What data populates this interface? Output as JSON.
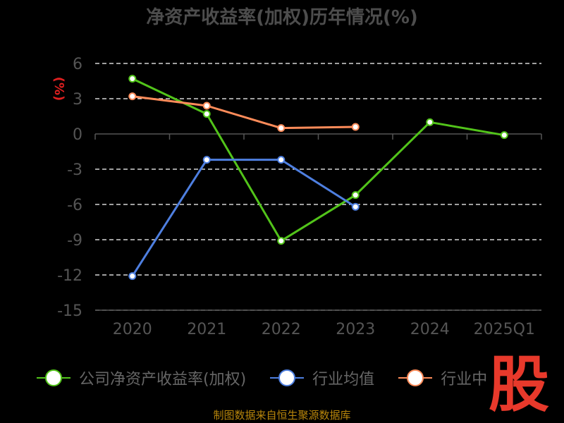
{
  "title": "净资产收益率(加权)历年情况(%)",
  "source": "制图数据来自恒生聚源数据库",
  "logo_text": "股",
  "chart_data": {
    "type": "line",
    "title": "净资产收益率(加权)历年情况(%)",
    "ylabel": "(%)",
    "xlabel": "",
    "categories": [
      "2020",
      "2021",
      "2022",
      "2023",
      "2024",
      "2025Q1"
    ],
    "yticks": [
      6,
      3,
      0,
      -3,
      -6,
      -9,
      -12,
      -15
    ],
    "ylim": [
      -15,
      6
    ],
    "grid": true,
    "legend_position": "bottom",
    "series": [
      {
        "name": "公司净资产收益率(加权)",
        "color": "#52c41a",
        "values": [
          4.7,
          1.7,
          -9.1,
          -5.2,
          1.0,
          -0.1
        ]
      },
      {
        "name": "行业均值",
        "color": "#4e7fe0",
        "values": [
          -12.1,
          -2.2,
          -2.2,
          -6.2,
          null,
          null
        ]
      },
      {
        "name": "行业中位数",
        "legend_label": "行业中",
        "color": "#ff8c5a",
        "values": [
          3.2,
          2.4,
          0.5,
          0.6,
          null,
          null
        ]
      }
    ]
  }
}
